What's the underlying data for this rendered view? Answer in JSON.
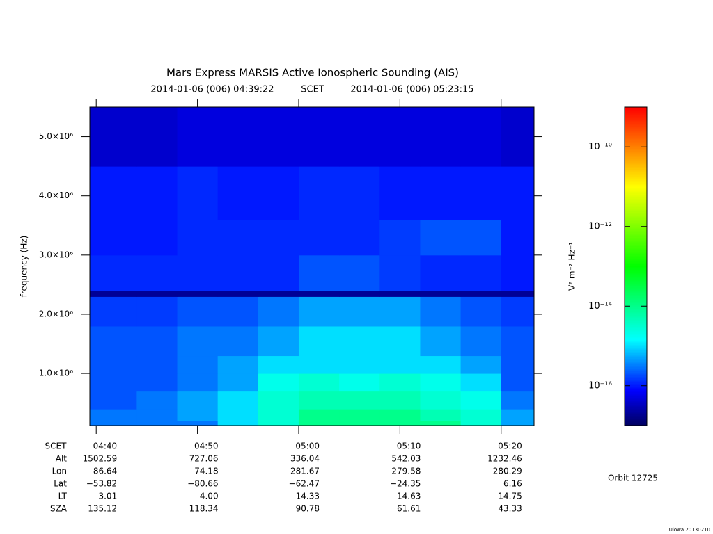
{
  "chart_data": {
    "type": "spectrogram",
    "title": "Mars Express MARSIS Active Ionospheric Sounding (AIS)",
    "subtitle_start": "2014-01-06 (006) 04:39:22",
    "subtitle_mid": "SCET",
    "subtitle_end": "2014-01-06 (006) 05:23:15",
    "y_label": "frequency (Hz)",
    "colorbar_label": "V² m⁻² Hz⁻¹",
    "orbit": "Orbit 12725",
    "credit": "Uiowa 20130210",
    "xlim": [
      "2014-01-06T04:39:22",
      "2014-01-06T05:23:15"
    ],
    "xticks": [
      {
        "value": "2014-01-06T04:40",
        "label": "04:40"
      },
      {
        "value": "2014-01-06T04:50",
        "label": "04:50"
      },
      {
        "value": "2014-01-06T05:00",
        "label": "05:00"
      },
      {
        "value": "2014-01-06T05:10",
        "label": "05:10"
      },
      {
        "value": "2014-01-06T05:20",
        "label": "05:20"
      }
    ],
    "ylim": [
      120000,
      5500000
    ],
    "yticks": [
      {
        "value": 1000000,
        "label": "1.0×10⁶"
      },
      {
        "value": 2000000,
        "label": "2.0×10⁶"
      },
      {
        "value": 3000000,
        "label": "3.0×10⁶"
      },
      {
        "value": 4000000,
        "label": "4.0×10⁶"
      },
      {
        "value": 5000000,
        "label": "5.0×10⁶"
      }
    ],
    "zlim": [
      1e-17,
      1e-09
    ],
    "zticks": [
      {
        "value": 1e-16,
        "label": "10⁻¹⁶"
      },
      {
        "value": 1e-14,
        "label": "10⁻¹⁴"
      },
      {
        "value": 1e-12,
        "label": "10⁻¹²"
      },
      {
        "value": 1e-10,
        "label": "10⁻¹⁰"
      }
    ],
    "z_log": true,
    "colorscale": [
      [
        0,
        "#000060"
      ],
      [
        0.11,
        "#0000ff"
      ],
      [
        0.27,
        "#00ffff"
      ],
      [
        0.5,
        "#00ff00"
      ],
      [
        0.75,
        "#ffff00"
      ],
      [
        1,
        "#ff0000"
      ]
    ],
    "time_bins": [
      "2014-01-06T04:39:22",
      "2014-01-06T04:44",
      "2014-01-06T04:48",
      "2014-01-06T04:52",
      "2014-01-06T04:56",
      "2014-01-06T05:00",
      "2014-01-06T05:04",
      "2014-01-06T05:08",
      "2014-01-06T05:12",
      "2014-01-06T05:16",
      "2014-01-06T05:20",
      "2014-01-06T05:23:15"
    ],
    "freq_bins": [
      120000,
      200000,
      400000,
      700000,
      1000000,
      1300000,
      1800000,
      2300000,
      2400000,
      3000000,
      3600000,
      4500000,
      5500000
    ],
    "z": [
      [
        3e-16,
        3e-16,
        3e-16,
        1e-15,
        3e-15,
        1e-14,
        1e-14,
        1e-14,
        1e-14,
        3e-15,
        5e-16
      ],
      [
        3e-16,
        3e-16,
        5e-16,
        1e-15,
        3e-15,
        1e-14,
        1e-14,
        1e-14,
        5e-15,
        3e-15,
        5e-16
      ],
      [
        2e-16,
        3e-16,
        5e-16,
        1e-15,
        3e-15,
        5e-15,
        5e-15,
        5e-15,
        3e-15,
        2e-15,
        3e-16
      ],
      [
        2e-16,
        2e-16,
        3e-16,
        5e-16,
        2e-15,
        3e-15,
        2e-15,
        3e-15,
        2e-15,
        1e-15,
        2e-16
      ],
      [
        2e-16,
        2e-16,
        3e-16,
        5e-16,
        1e-15,
        1e-15,
        1e-15,
        1e-15,
        1e-15,
        5e-16,
        2e-16
      ],
      [
        2e-16,
        2e-16,
        3e-16,
        3e-16,
        5e-16,
        1e-15,
        1e-15,
        1e-15,
        5e-16,
        3e-16,
        2e-16
      ],
      [
        1.5e-16,
        1.5e-16,
        2e-16,
        2e-16,
        3e-16,
        5e-16,
        5e-16,
        5e-16,
        3e-16,
        2e-16,
        1.5e-16
      ],
      [
        2e-17,
        2e-17,
        2e-17,
        2e-17,
        2e-17,
        2e-17,
        2e-17,
        2e-17,
        2e-17,
        2e-17,
        2e-17
      ],
      [
        1.2e-16,
        1.2e-16,
        1.2e-16,
        1.2e-16,
        1.2e-16,
        2e-16,
        2e-16,
        1.5e-16,
        1.2e-16,
        1.2e-16,
        1e-16
      ],
      [
        1e-16,
        1e-16,
        1.2e-16,
        1.2e-16,
        1.2e-16,
        1.2e-16,
        1.2e-16,
        1.5e-16,
        2e-16,
        2e-16,
        1e-16
      ],
      [
        1e-16,
        1e-16,
        1.2e-16,
        1e-16,
        1e-16,
        1.2e-16,
        1.2e-16,
        1e-16,
        1e-16,
        1e-16,
        1e-16
      ],
      [
        4e-17,
        4e-17,
        5e-17,
        5e-17,
        5e-17,
        5e-17,
        5e-17,
        5e-17,
        5e-17,
        5e-17,
        4e-17
      ]
    ],
    "ephemeris": {
      "header": "SCET",
      "rows": [
        {
          "label": "Alt",
          "values": [
            "1502.59",
            "727.06",
            "336.04",
            "542.03",
            "1232.46"
          ]
        },
        {
          "label": "Lon",
          "values": [
            "86.64",
            "74.18",
            "281.67",
            "279.58",
            "280.29"
          ]
        },
        {
          "label": "Lat",
          "values": [
            "−53.82",
            "−80.66",
            "−62.47",
            "−24.35",
            "6.16"
          ]
        },
        {
          "label": "LT",
          "values": [
            "3.01",
            "4.00",
            "14.33",
            "14.63",
            "14.75"
          ]
        },
        {
          "label": "SZA",
          "values": [
            "135.12",
            "118.34",
            "90.78",
            "61.61",
            "43.33"
          ]
        }
      ]
    }
  }
}
